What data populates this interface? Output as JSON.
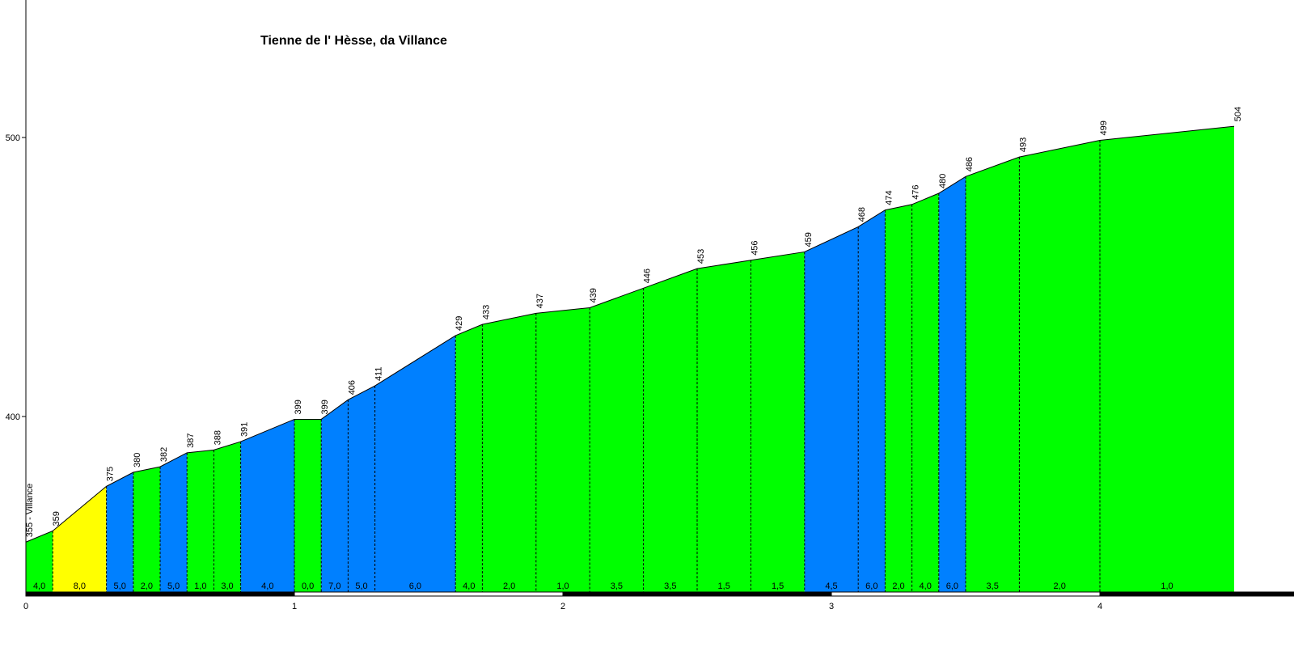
{
  "chart_data": {
    "type": "area",
    "title": "Tienne de l' Hèsse, da Villance",
    "start_label": "355 - Villance",
    "xlabel": "",
    "ylabel": "",
    "xlim": [
      0,
      4.8
    ],
    "ylim": [
      335,
      550
    ],
    "x_ticks": [
      0,
      1,
      2,
      3,
      4
    ],
    "y_ticks": [
      400,
      500
    ],
    "points": [
      {
        "x": 0.0,
        "elev": 355
      },
      {
        "x": 0.1,
        "elev": 359
      },
      {
        "x": 0.3,
        "elev": 375
      },
      {
        "x": 0.4,
        "elev": 380
      },
      {
        "x": 0.5,
        "elev": 382
      },
      {
        "x": 0.6,
        "elev": 387
      },
      {
        "x": 0.7,
        "elev": 388
      },
      {
        "x": 0.8,
        "elev": 391
      },
      {
        "x": 1.0,
        "elev": 399
      },
      {
        "x": 1.1,
        "elev": 399
      },
      {
        "x": 1.2,
        "elev": 406
      },
      {
        "x": 1.3,
        "elev": 411
      },
      {
        "x": 1.6,
        "elev": 429
      },
      {
        "x": 1.7,
        "elev": 433
      },
      {
        "x": 1.9,
        "elev": 437
      },
      {
        "x": 2.1,
        "elev": 439
      },
      {
        "x": 2.3,
        "elev": 446
      },
      {
        "x": 2.5,
        "elev": 453
      },
      {
        "x": 2.7,
        "elev": 456
      },
      {
        "x": 2.9,
        "elev": 459
      },
      {
        "x": 3.1,
        "elev": 468
      },
      {
        "x": 3.2,
        "elev": 474
      },
      {
        "x": 3.3,
        "elev": 476
      },
      {
        "x": 3.4,
        "elev": 480
      },
      {
        "x": 3.5,
        "elev": 486
      },
      {
        "x": 3.7,
        "elev": 493
      },
      {
        "x": 4.0,
        "elev": 499
      },
      {
        "x": 4.5,
        "elev": 504
      }
    ],
    "segments": [
      {
        "grade": "4,0",
        "color": "#00ff00"
      },
      {
        "grade": "8,0",
        "color": "#ffff00"
      },
      {
        "grade": "5,0",
        "color": "#0080ff"
      },
      {
        "grade": "2,0",
        "color": "#00ff00"
      },
      {
        "grade": "5,0",
        "color": "#0080ff"
      },
      {
        "grade": "1,0",
        "color": "#00ff00"
      },
      {
        "grade": "3,0",
        "color": "#00ff00"
      },
      {
        "grade": "4,0",
        "color": "#0080ff"
      },
      {
        "grade": "0,0",
        "color": "#00ff00"
      },
      {
        "grade": "7,0",
        "color": "#0080ff"
      },
      {
        "grade": "5,0",
        "color": "#0080ff"
      },
      {
        "grade": "6,0",
        "color": "#0080ff"
      },
      {
        "grade": "4,0",
        "color": "#00ff00"
      },
      {
        "grade": "2,0",
        "color": "#00ff00"
      },
      {
        "grade": "1,0",
        "color": "#00ff00"
      },
      {
        "grade": "3,5",
        "color": "#00ff00"
      },
      {
        "grade": "3,5",
        "color": "#00ff00"
      },
      {
        "grade": "1,5",
        "color": "#00ff00"
      },
      {
        "grade": "1,5",
        "color": "#00ff00"
      },
      {
        "grade": "4,5",
        "color": "#0080ff"
      },
      {
        "grade": "6,0",
        "color": "#0080ff"
      },
      {
        "grade": "2,0",
        "color": "#00ff00"
      },
      {
        "grade": "4,0",
        "color": "#00ff00"
      },
      {
        "grade": "6,0",
        "color": "#0080ff"
      },
      {
        "grade": "3,5",
        "color": "#00ff00"
      },
      {
        "grade": "2,0",
        "color": "#00ff00"
      },
      {
        "grade": "1,0",
        "color": "#00ff00"
      }
    ],
    "colors": {
      "easy": "#00ff00",
      "medium": "#0080ff",
      "steep": "#ffff00",
      "axis": "#000000",
      "outline": "#000000"
    },
    "grid": false,
    "legend": "none"
  }
}
